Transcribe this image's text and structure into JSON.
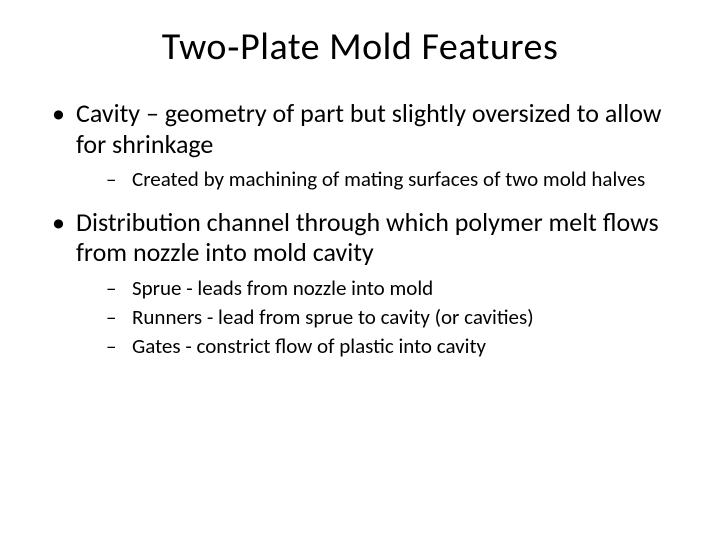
{
  "slide": {
    "title": "Two‑Plate Mold Features",
    "bullets": [
      {
        "text": "Cavity – geometry of part but slightly oversized to allow for shrinkage",
        "sub": [
          "Created by machining of mating surfaces of two mold halves"
        ]
      },
      {
        "text": "Distribution channel through which polymer melt flows from nozzle into mold cavity",
        "sub": [
          "Sprue - leads from nozzle into mold",
          "Runners - lead from sprue to cavity (or cavities)",
          "Gates - constrict flow of plastic into cavity"
        ]
      }
    ]
  },
  "style": {
    "background_color": "#ffffff",
    "text_color": "#000000",
    "title_fontsize": 38,
    "bullet_fontsize": 26,
    "sub_bullet_fontsize": 21,
    "font_family": "Calibri"
  }
}
